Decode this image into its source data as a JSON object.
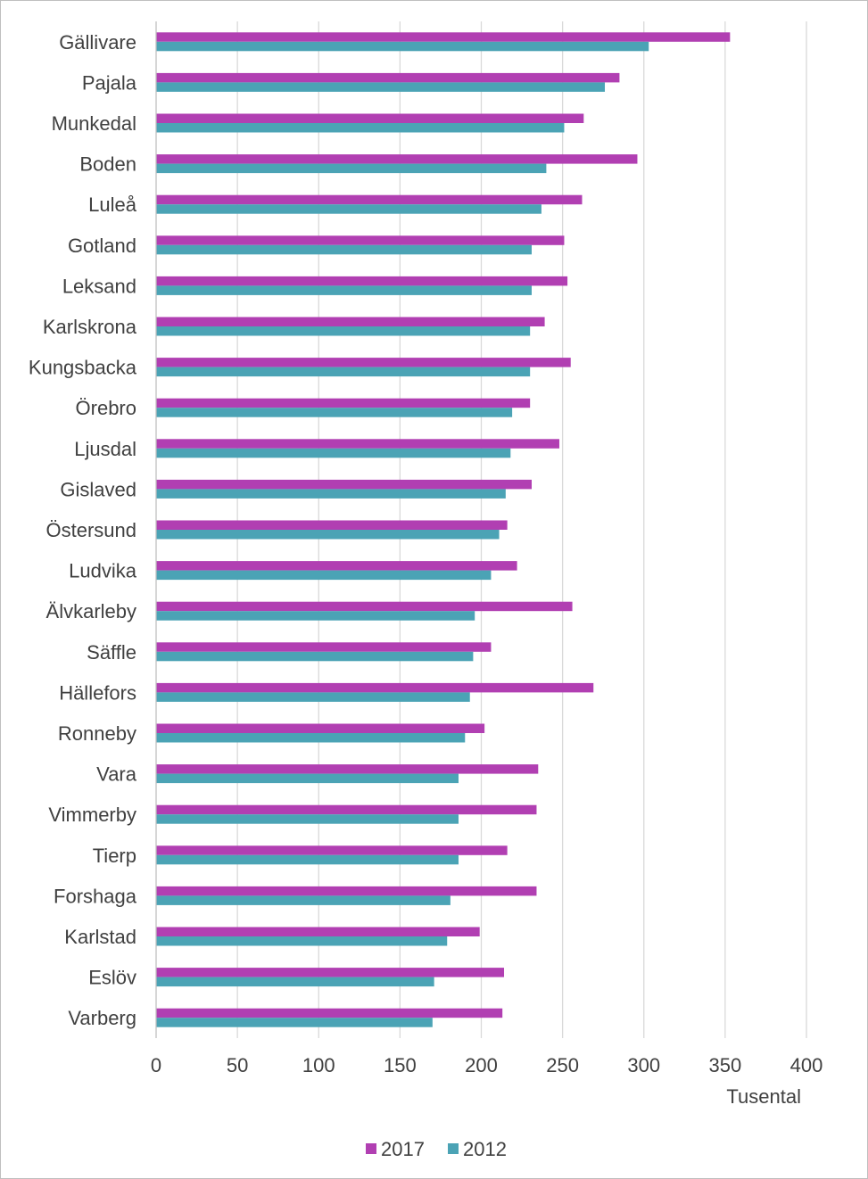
{
  "chart_data": {
    "type": "bar",
    "orientation": "horizontal",
    "categories": [
      "Gällivare",
      "Pajala",
      "Munkedal",
      "Boden",
      "Luleå",
      "Gotland",
      "Leksand",
      "Karlskrona",
      "Kungsbacka",
      "Örebro",
      "Ljusdal",
      "Gislaved",
      "Östersund",
      "Ludvika",
      "Älvkarleby",
      "Säffle",
      "Hällefors",
      "Ronneby",
      "Vara",
      "Vimmerby",
      "Tierp",
      "Forshaga",
      "Karlstad",
      "Eslöv",
      "Varberg"
    ],
    "series": [
      {
        "name": "2017",
        "color": "#b13fb2",
        "values": [
          353,
          285,
          263,
          296,
          262,
          251,
          253,
          239,
          255,
          230,
          248,
          231,
          216,
          222,
          256,
          206,
          269,
          202,
          235,
          234,
          216,
          234,
          199,
          214,
          213
        ]
      },
      {
        "name": "2012",
        "color": "#4ba3b5",
        "values": [
          303,
          276,
          251,
          240,
          237,
          231,
          231,
          230,
          230,
          219,
          218,
          215,
          211,
          206,
          196,
          195,
          193,
          190,
          186,
          186,
          186,
          181,
          179,
          171,
          170
        ]
      }
    ],
    "xlim": [
      0,
      400
    ],
    "xticks": [
      "0",
      "50",
      "100",
      "150",
      "200",
      "250",
      "300",
      "350",
      "400"
    ],
    "xunit": "Tusental",
    "grid": "vertical",
    "legend": "bottom"
  }
}
